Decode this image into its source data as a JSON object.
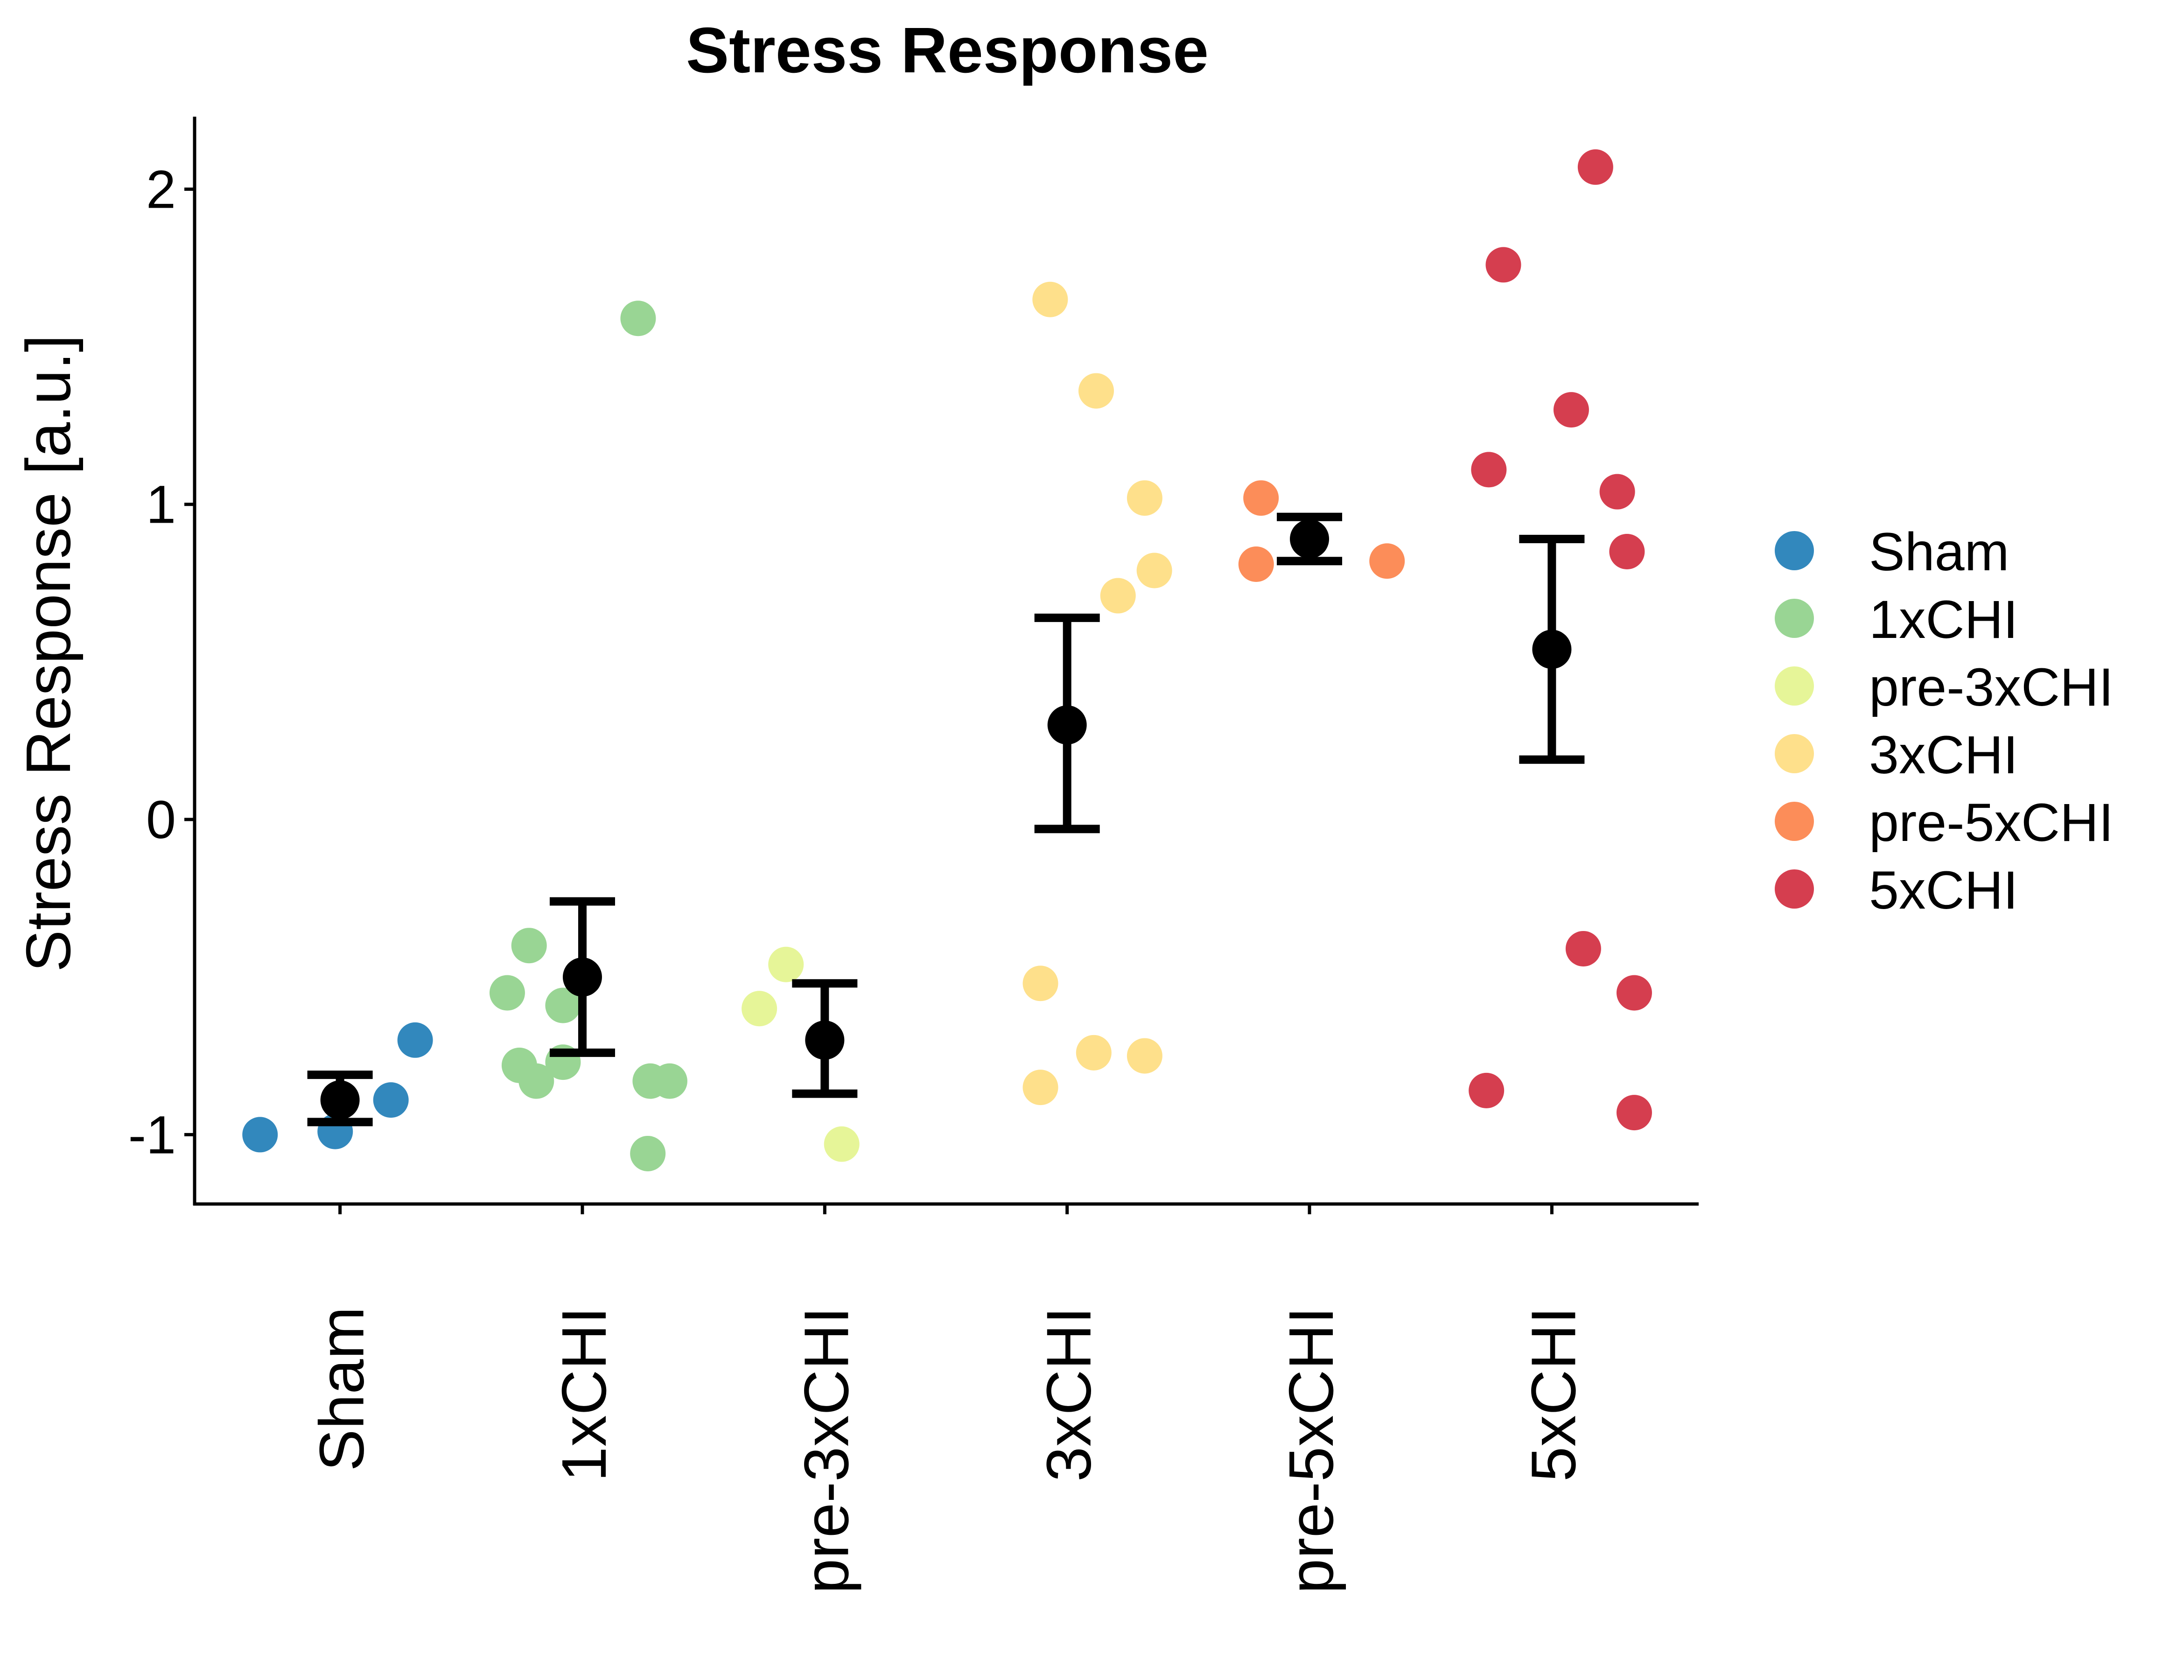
{
  "chart_data": {
    "type": "scatter",
    "title": "Stress Response",
    "xlabel": "",
    "ylabel": "Stress Response [a.u.]",
    "ylim": [
      -1.22,
      2.23
    ],
    "yticks": [
      "-1",
      "0",
      "1",
      "2"
    ],
    "categories": [
      "Sham",
      "1xCHI",
      "pre-3xCHI",
      "3xCHI",
      "pre-5xCHI",
      "5xCHI"
    ],
    "grid": false,
    "legend_position": "right",
    "series": [
      {
        "name": "Sham",
        "color": "#3288BD",
        "points": [
          [
            -0.33,
            -1.0
          ],
          [
            -0.02,
            -0.99
          ],
          [
            0.21,
            -0.89
          ],
          [
            0.31,
            -0.7
          ]
        ],
        "mean": -0.89,
        "err_low": -0.96,
        "err_high": -0.81
      },
      {
        "name": "1xCHI",
        "color": "#99D594",
        "points": [
          [
            0.23,
            1.59
          ],
          [
            -0.31,
            -0.55
          ],
          [
            -0.22,
            -0.4
          ],
          [
            -0.08,
            -0.59
          ],
          [
            -0.26,
            -0.78
          ],
          [
            -0.19,
            -0.83
          ],
          [
            -0.08,
            -0.77
          ],
          [
            0.28,
            -0.83
          ],
          [
            0.36,
            -0.83
          ],
          [
            0.27,
            -1.06
          ]
        ],
        "mean": -0.5,
        "err_low": -0.74,
        "err_high": -0.26
      },
      {
        "name": "pre-3xCHI",
        "color": "#E6F598",
        "points": [
          [
            -0.16,
            -0.46
          ],
          [
            -0.27,
            -0.6
          ],
          [
            0.07,
            -1.03
          ]
        ],
        "mean": -0.7,
        "err_low": -0.87,
        "err_high": -0.52
      },
      {
        "name": "3xCHI",
        "color": "#FEE08B",
        "points": [
          [
            -0.07,
            1.65
          ],
          [
            0.12,
            1.36
          ],
          [
            0.32,
            1.02
          ],
          [
            0.21,
            0.71
          ],
          [
            0.36,
            0.79
          ],
          [
            -0.11,
            -0.52
          ],
          [
            -0.11,
            -0.85
          ],
          [
            0.11,
            -0.74
          ],
          [
            0.32,
            -0.75
          ]
        ],
        "mean": 0.3,
        "err_low": -0.03,
        "err_high": 0.64
      },
      {
        "name": "pre-5xCHI",
        "color": "#FC8D59",
        "points": [
          [
            -0.2,
            1.02
          ],
          [
            -0.22,
            0.81
          ],
          [
            0.32,
            0.82
          ]
        ],
        "mean": 0.89,
        "err_low": 0.82,
        "err_high": 0.96
      },
      {
        "name": "5xCHI",
        "color": "#D53E4F",
        "points": [
          [
            0.18,
            2.07
          ],
          [
            -0.2,
            1.76
          ],
          [
            0.08,
            1.3
          ],
          [
            -0.26,
            1.11
          ],
          [
            0.27,
            1.04
          ],
          [
            0.31,
            0.85
          ],
          [
            0.13,
            -0.41
          ],
          [
            0.34,
            -0.55
          ],
          [
            -0.27,
            -0.86
          ],
          [
            0.34,
            -0.93
          ]
        ],
        "mean": 0.54,
        "err_low": 0.19,
        "err_high": 0.89
      }
    ]
  }
}
